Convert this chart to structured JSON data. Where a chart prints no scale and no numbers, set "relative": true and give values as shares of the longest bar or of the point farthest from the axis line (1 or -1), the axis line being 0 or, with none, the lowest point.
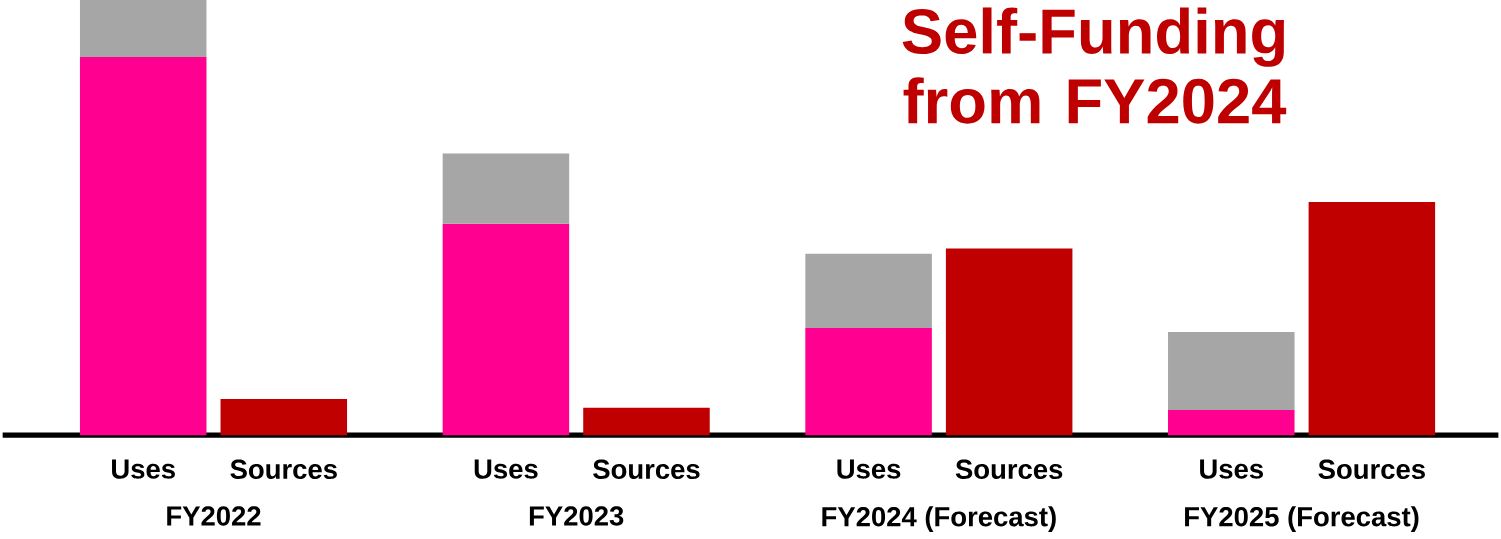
{
  "chart_data": {
    "type": "bar",
    "title": "Self-Funding from FY2024",
    "relative": true,
    "stacked": true,
    "categories": [
      "Uses",
      "Sources",
      "Uses",
      "Sources",
      "Uses",
      "Sources",
      "Uses",
      "Sources"
    ],
    "series": [
      {
        "color": "#ff0090",
        "values": [
          0.869,
          null,
          0.486,
          null,
          0.246,
          null,
          0.058,
          null
        ]
      },
      {
        "color": "#a6a6a6",
        "values": [
          0.131,
          null,
          0.161,
          null,
          0.171,
          null,
          0.179,
          null
        ]
      },
      {
        "color": "#c00000",
        "values": [
          null,
          0.083,
          null,
          0.063,
          null,
          0.429,
          null,
          0.536
        ]
      }
    ],
    "annotations": [
      "FY2022",
      "FY2023",
      "FY2024 (Forecast)",
      "FY2025 (Forecast)"
    ]
  }
}
